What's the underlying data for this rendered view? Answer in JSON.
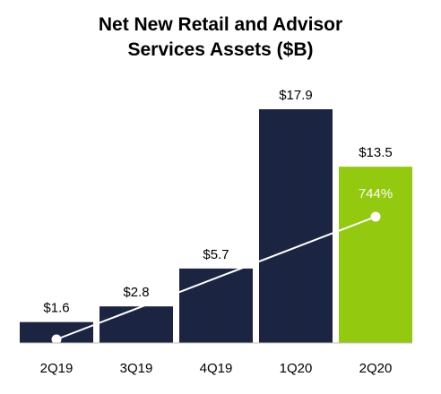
{
  "chart_data": {
    "type": "bar",
    "title_lines": [
      "Net New Retail and Advisor",
      "Services Assets ($B)"
    ],
    "categories": [
      "2Q19",
      "3Q19",
      "4Q19",
      "1Q20",
      "2Q20"
    ],
    "values": [
      1.6,
      2.8,
      5.7,
      17.9,
      13.5
    ],
    "value_labels": [
      "$1.6",
      "$2.8",
      "$5.7",
      "$17.9",
      "$13.5"
    ],
    "bar_colors": [
      "#1b2541",
      "#1b2541",
      "#1b2541",
      "#1b2541",
      "#93c90e"
    ],
    "trend_line": {
      "start_index": 0,
      "end_index": 4,
      "label": "744%",
      "color": "#ffffff"
    },
    "ylim": [
      0,
      18.5
    ],
    "grid": false,
    "legend": "none"
  }
}
